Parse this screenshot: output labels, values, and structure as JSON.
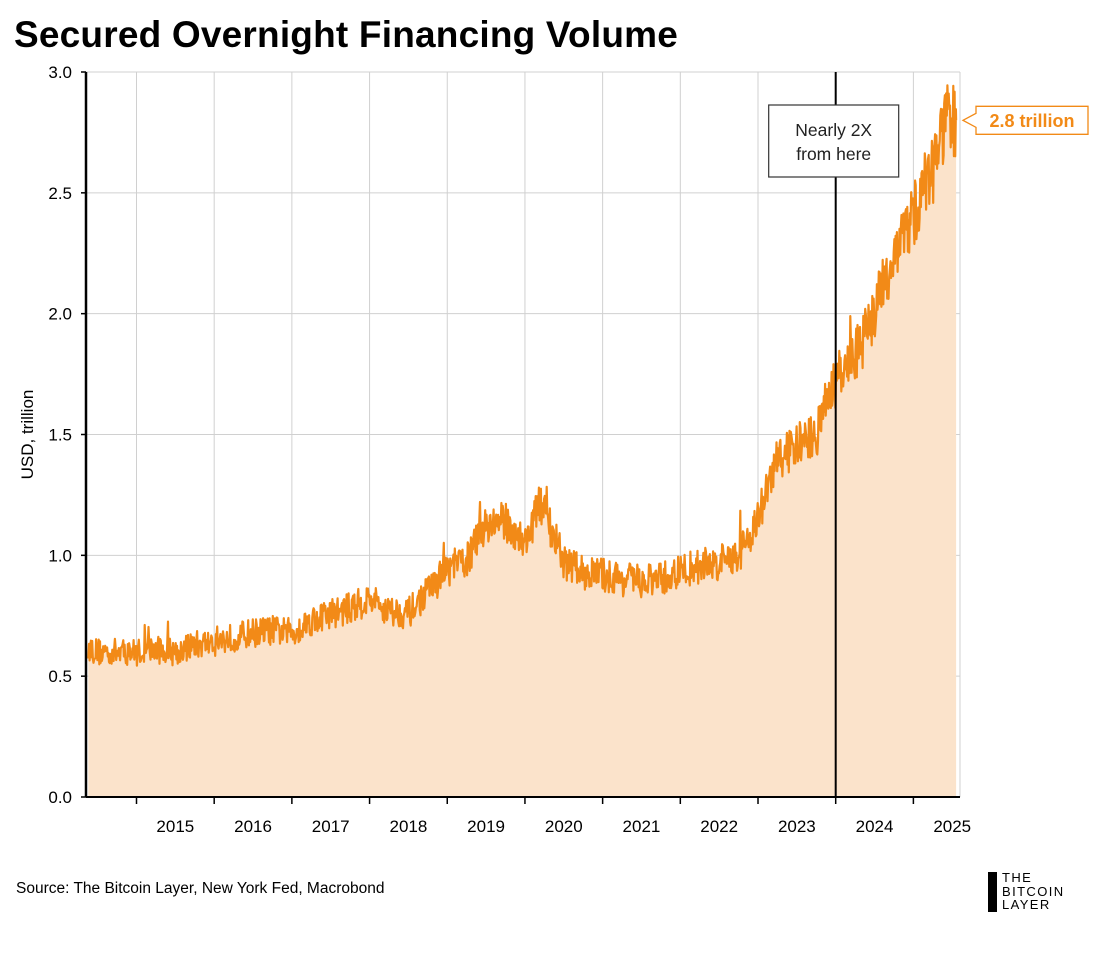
{
  "header": {
    "title": "Secured Overnight Financing Volume"
  },
  "footer": {
    "source": "Source: The Bitcoin Layer, New York Fed, Macrobond"
  },
  "logo": {
    "lines": [
      "THE",
      "BITCOIN",
      "LAYER"
    ]
  },
  "colors": {
    "line": "#F28A17",
    "fill": "#FBE3CB",
    "callout": "#F28A17",
    "grid": "#D0D0D0",
    "axis": "#000000"
  },
  "chart_data": {
    "type": "area",
    "title": "Secured Overnight Financing Volume",
    "ylabel": "USD, trillion",
    "xlabel": "",
    "ylim": [
      0,
      3.0
    ],
    "yticks": [
      "0.0",
      "0.5",
      "1.0",
      "1.5",
      "2.0",
      "2.5",
      "3.0"
    ],
    "xlim": [
      2014.35,
      2025.6
    ],
    "xticks": [
      "2015",
      "2016",
      "2017",
      "2018",
      "2019",
      "2020",
      "2021",
      "2022",
      "2023",
      "2024",
      "2025"
    ],
    "grid": true,
    "series": [
      {
        "values": [
          {
            "x": 2014.38,
            "y": 0.62
          },
          {
            "x": 2014.5,
            "y": 0.6
          },
          {
            "x": 2014.75,
            "y": 0.6
          },
          {
            "x": 2015.0,
            "y": 0.6
          },
          {
            "x": 2015.25,
            "y": 0.61
          },
          {
            "x": 2015.5,
            "y": 0.6
          },
          {
            "x": 2015.75,
            "y": 0.63
          },
          {
            "x": 2016.0,
            "y": 0.64
          },
          {
            "x": 2016.25,
            "y": 0.66
          },
          {
            "x": 2016.5,
            "y": 0.68
          },
          {
            "x": 2016.75,
            "y": 0.69
          },
          {
            "x": 2017.0,
            "y": 0.68
          },
          {
            "x": 2017.25,
            "y": 0.73
          },
          {
            "x": 2017.5,
            "y": 0.76
          },
          {
            "x": 2017.75,
            "y": 0.78
          },
          {
            "x": 2018.0,
            "y": 0.82
          },
          {
            "x": 2018.25,
            "y": 0.77
          },
          {
            "x": 2018.5,
            "y": 0.76
          },
          {
            "x": 2018.75,
            "y": 0.85
          },
          {
            "x": 2019.0,
            "y": 0.94
          },
          {
            "x": 2019.25,
            "y": 0.98
          },
          {
            "x": 2019.5,
            "y": 1.13
          },
          {
            "x": 2019.75,
            "y": 1.14
          },
          {
            "x": 2020.0,
            "y": 1.05
          },
          {
            "x": 2020.2,
            "y": 1.22
          },
          {
            "x": 2020.35,
            "y": 1.1
          },
          {
            "x": 2020.5,
            "y": 0.97
          },
          {
            "x": 2020.75,
            "y": 0.93
          },
          {
            "x": 2021.0,
            "y": 0.92
          },
          {
            "x": 2021.25,
            "y": 0.9
          },
          {
            "x": 2021.5,
            "y": 0.89
          },
          {
            "x": 2021.75,
            "y": 0.9
          },
          {
            "x": 2022.0,
            "y": 0.93
          },
          {
            "x": 2022.25,
            "y": 0.96
          },
          {
            "x": 2022.5,
            "y": 0.97
          },
          {
            "x": 2022.75,
            "y": 1.0
          },
          {
            "x": 2023.0,
            "y": 1.15
          },
          {
            "x": 2023.25,
            "y": 1.4
          },
          {
            "x": 2023.5,
            "y": 1.45
          },
          {
            "x": 2023.75,
            "y": 1.5
          },
          {
            "x": 2024.0,
            "y": 1.72
          },
          {
            "x": 2024.25,
            "y": 1.82
          },
          {
            "x": 2024.5,
            "y": 2.0
          },
          {
            "x": 2024.75,
            "y": 2.25
          },
          {
            "x": 2025.0,
            "y": 2.4
          },
          {
            "x": 2025.25,
            "y": 2.62
          },
          {
            "x": 2025.45,
            "y": 2.82
          },
          {
            "x": 2025.55,
            "y": 2.8
          }
        ]
      }
    ],
    "annotations": [
      {
        "text_lines": [
          "Nearly 2X",
          "from here"
        ],
        "x": 2024.0
      },
      {
        "text": "2.8 trillion",
        "y": 2.8
      }
    ]
  }
}
